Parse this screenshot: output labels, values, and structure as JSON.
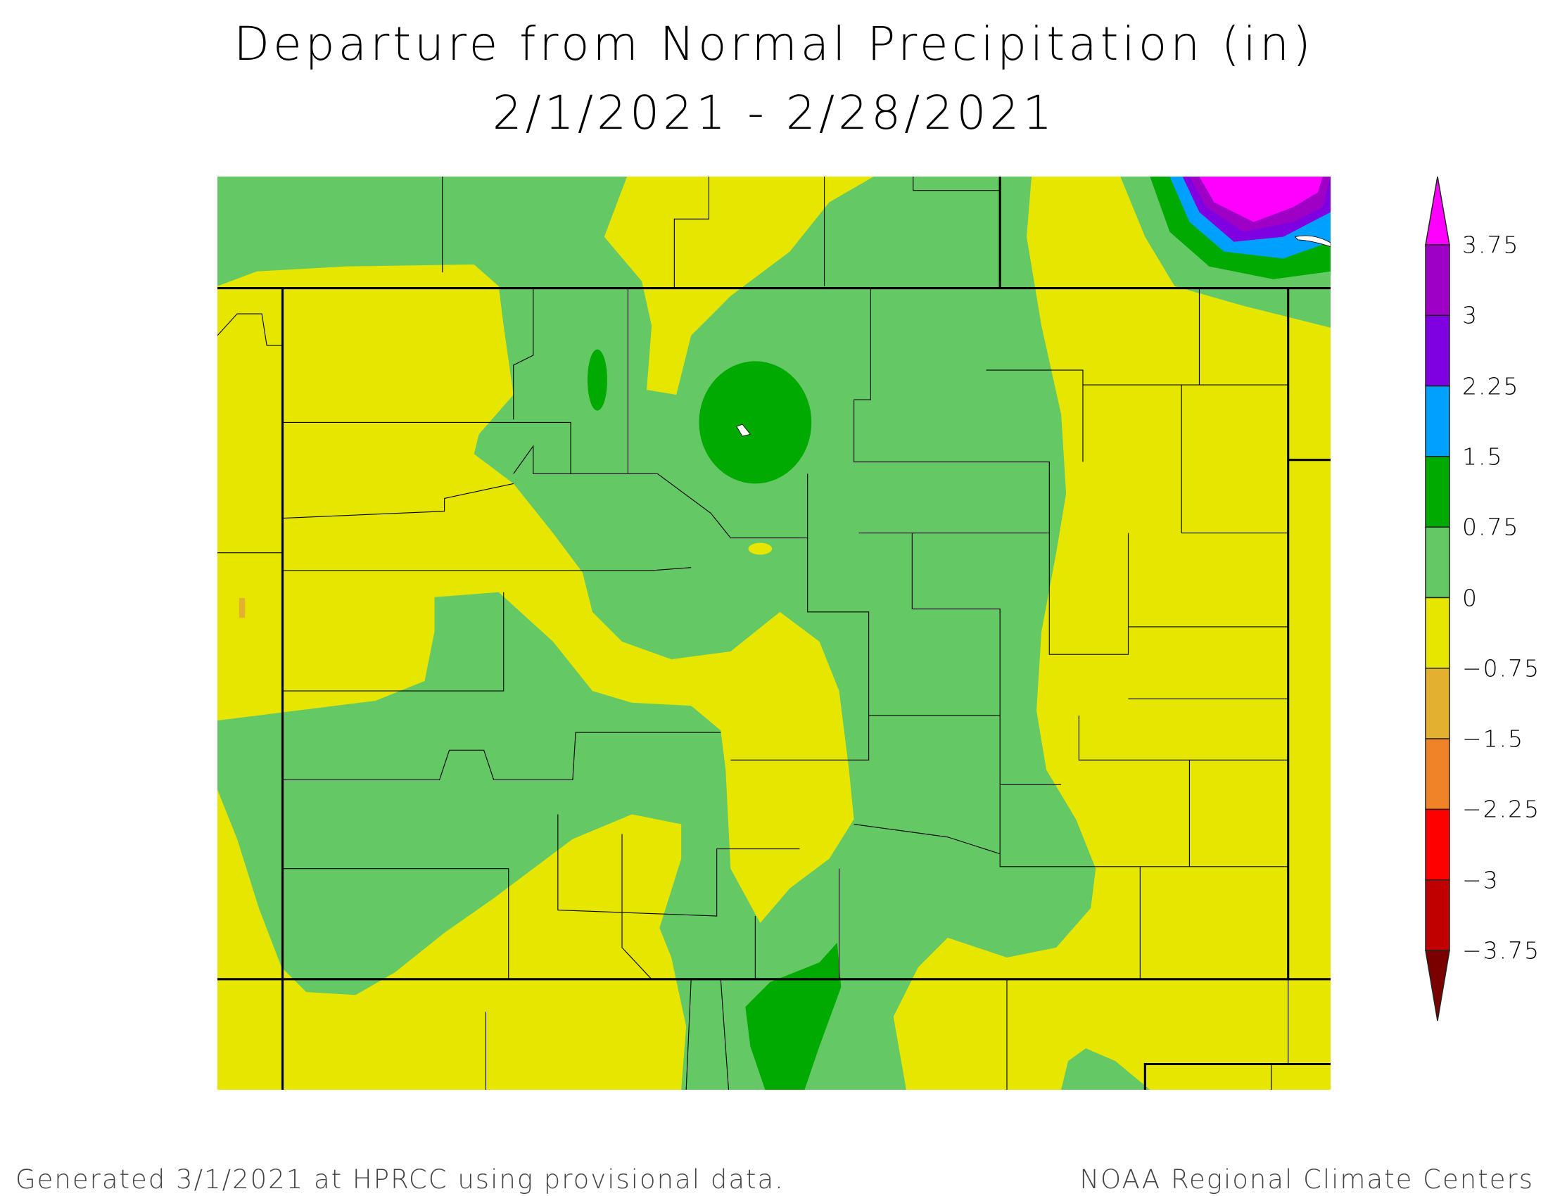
{
  "title": {
    "line1": "Departure from Normal Precipitation (in)",
    "line2": "2/1/2021 - 2/28/2021"
  },
  "legend": {
    "labels": [
      "3.75",
      "3",
      "2.25",
      "1.5",
      "0.75",
      "0",
      "−0.75",
      "−1.5",
      "−2.25",
      "−3",
      "−3.75"
    ],
    "over_color": "#ff00ff",
    "bins": [
      "#9e00c6",
      "#7f00e0",
      "#00a0ff",
      "#00aa00",
      "#64c864",
      "#e6e600",
      "#e3b030",
      "#f08228",
      "#ff0000",
      "#c00000"
    ],
    "under_color": "#7a0000"
  },
  "map": {
    "region": "Colorado",
    "border_color": "#000000",
    "lake_color": "#ffffff"
  },
  "footer": {
    "left": "Generated 3/1/2021 at HPRCC using provisional data.",
    "right": "NOAA Regional Climate Centers"
  }
}
